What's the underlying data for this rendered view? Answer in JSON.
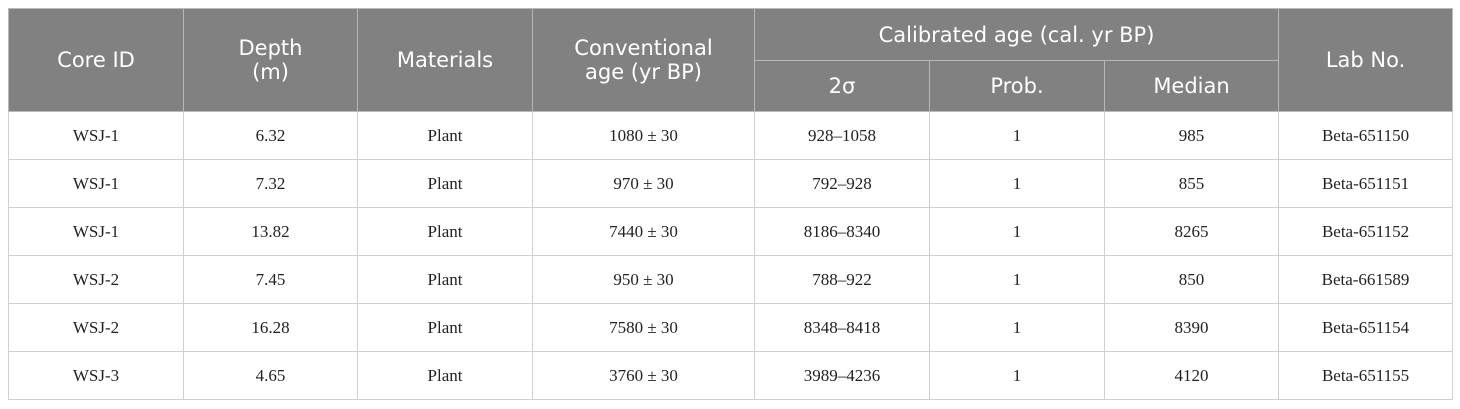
{
  "table": {
    "columns": [
      "Core ID",
      "Depth\n(m)",
      "Materials",
      "Conventional\nage (yr BP)",
      "Lab No."
    ],
    "group": "Calibrated age (cal. yr BP)",
    "subcolumns": [
      "2σ",
      "Prob.",
      "Median"
    ],
    "rows": [
      [
        "WSJ-1",
        "6.32",
        "Plant",
        "1080 ± 30",
        "928–1058",
        "1",
        "985",
        "Beta-651150"
      ],
      [
        "WSJ-1",
        "7.32",
        "Plant",
        "970 ± 30",
        "792–928",
        "1",
        "855",
        "Beta-651151"
      ],
      [
        "WSJ-1",
        "13.82",
        "Plant",
        "7440 ± 30",
        "8186–8340",
        "1",
        "8265",
        "Beta-651152"
      ],
      [
        "WSJ-2",
        "7.45",
        "Plant",
        "950 ± 30",
        "788–922",
        "1",
        "850",
        "Beta-661589"
      ],
      [
        "WSJ-2",
        "16.28",
        "Plant",
        "7580 ± 30",
        "8348–8418",
        "1",
        "8390",
        "Beta-651154"
      ],
      [
        "WSJ-3",
        "4.65",
        "Plant",
        "3760 ± 30",
        "3989–4236",
        "1",
        "4120",
        "Beta-651155"
      ]
    ]
  }
}
